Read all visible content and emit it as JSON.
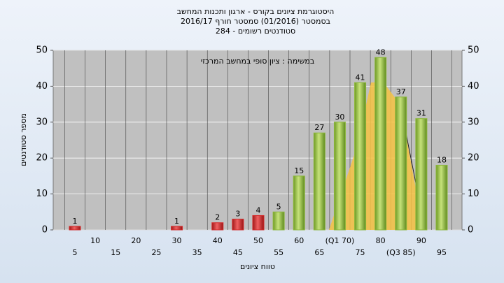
{
  "chart_data": {
    "type": "bar",
    "title": [
      "היסטוגרמת ציונים בקורס - ארגון ותכנות המחשב",
      "בסמסטר  (01/2016)  סמסטר חורף 2016/17",
      "סטודנטים רשומים - 284"
    ],
    "annotation": "במשימה : ציון סופי במחשב המרכזי",
    "x_label": "טווח ציונים",
    "y_label": "מספר סטודנטים",
    "categories": [
      "5",
      "10",
      "15",
      "20",
      "25",
      "30",
      "35",
      "40",
      "45",
      "50",
      "55",
      "60",
      "65",
      "(Q1 70)",
      "75",
      "80",
      "(Q3 85)",
      "90",
      "95"
    ],
    "values": [
      1,
      0,
      0,
      0,
      0,
      1,
      0,
      2,
      3,
      4,
      5,
      15,
      27,
      30,
      41,
      48,
      37,
      31,
      18
    ],
    "colors": [
      "#d42a2a",
      "#d42a2a",
      "#d42a2a",
      "#d42a2a",
      "#d42a2a",
      "#d42a2a",
      "#d42a2a",
      "#d42a2a",
      "#d42a2a",
      "#d42a2a",
      "#8cb83a",
      "#8cb83a",
      "#8cb83a",
      "#8cb83a",
      "#8cb83a",
      "#8cb83a",
      "#8cb83a",
      "#8cb83a",
      "#8cb83a"
    ],
    "ylim": [
      0,
      50
    ],
    "yticks": [
      0,
      10,
      20,
      30,
      40,
      50
    ],
    "y2lim": [
      0,
      50
    ],
    "y2ticks": [
      0,
      10,
      20,
      30,
      40,
      50
    ],
    "grid": true
  }
}
